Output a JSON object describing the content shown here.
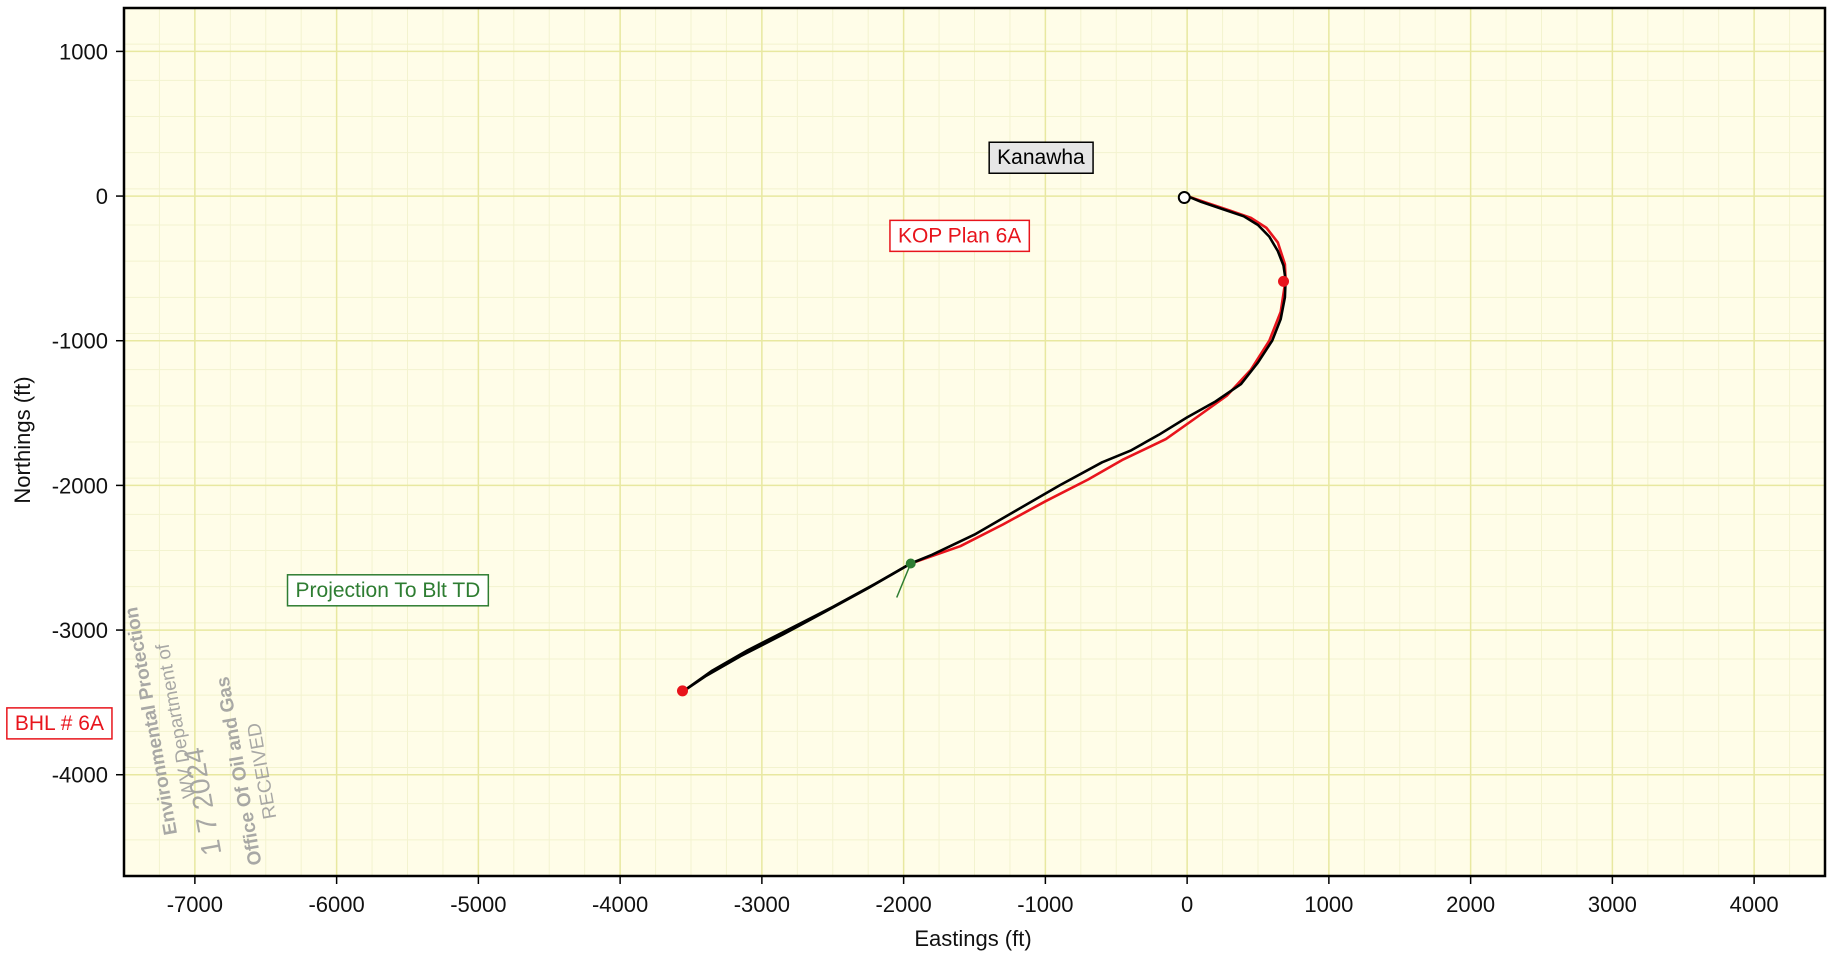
{
  "chart_data": {
    "type": "line",
    "title": "",
    "xlabel": "Eastings (ft)",
    "ylabel": "Northings (ft)",
    "xlim": [
      -7500,
      4500
    ],
    "ylim": [
      -4700,
      1300
    ],
    "xticks": [
      -7000,
      -6000,
      -5000,
      -4000,
      -3000,
      -2000,
      -1000,
      0,
      1000,
      2000,
      3000,
      4000
    ],
    "yticks": [
      1000,
      0,
      -1000,
      -2000,
      -3000,
      -4000
    ],
    "grid": true,
    "minor_grid": true,
    "colors": {
      "plot_background": "#fffde8",
      "major_grid": "#e8e8a0",
      "minor_grid": "#f3f3cf",
      "axis": "#000000",
      "actual": "#000000",
      "plan": "#e8141c",
      "projection": "#2e7d32",
      "annotation_red": "#e8141c",
      "annotation_green": "#2e7d32"
    },
    "series": [
      {
        "x": [
          0,
          100,
          250,
          400,
          500,
          580,
          640,
          680,
          695,
          690,
          660,
          600,
          500,
          380,
          200,
          0,
          -200,
          -400,
          -600,
          -900,
          -1200,
          -1500,
          -1800,
          -1950
        ],
        "y": [
          0,
          -40,
          -90,
          -140,
          -200,
          -280,
          -380,
          -480,
          -580,
          -700,
          -850,
          -1000,
          -1150,
          -1300,
          -1420,
          -1530,
          -1650,
          -1760,
          -1840,
          -2000,
          -2170,
          -2340,
          -2480,
          -2540
        ]
      },
      {
        "x": [
          0,
          150,
          300,
          450,
          560,
          640,
          690,
          695,
          660,
          580,
          450,
          280,
          80,
          -150,
          -450,
          -700,
          -1000,
          -1300,
          -1600,
          -1950
        ],
        "y": [
          0,
          -50,
          -100,
          -150,
          -220,
          -320,
          -470,
          -580,
          -800,
          -1000,
          -1200,
          -1380,
          -1520,
          -1680,
          -1820,
          -1960,
          -2110,
          -2270,
          -2420,
          -2540
        ]
      },
      {
        "x": [
          -1950,
          -2200,
          -2500,
          -2800,
          -3100,
          -3350,
          -3550
        ],
        "y": [
          -2540,
          -2680,
          -2840,
          -2990,
          -3140,
          -3280,
          -3420
        ]
      },
      {
        "x": [
          -1950,
          -2250,
          -2550,
          -2850,
          -3150,
          -3400,
          -3550
        ],
        "y": [
          -2540,
          -2710,
          -2870,
          -3030,
          -3180,
          -3320,
          -3420
        ]
      }
    ],
    "points": [
      {
        "name": "surface",
        "x": -20,
        "y": -10,
        "style": "circle-open"
      },
      {
        "name": "kop",
        "x": 680,
        "y": -590,
        "style": "dot-red"
      },
      {
        "name": "projection",
        "x": -1950,
        "y": -2540,
        "style": "dot-green"
      },
      {
        "name": "bhl",
        "x": -3560,
        "y": -3420,
        "style": "dot-red"
      }
    ],
    "annotations": [
      {
        "text": "Kanawha",
        "x": -1340,
        "y": 220,
        "style": "gray"
      },
      {
        "text": "KOP Plan 6A",
        "x": -2040,
        "y": -320,
        "style": "red"
      },
      {
        "text": "Projection To Blt TD",
        "x": -6290,
        "y": -2770,
        "style": "green"
      },
      {
        "text": "BHL # 6A",
        "x": -8270,
        "y": -3690,
        "style": "red"
      }
    ]
  },
  "stamp": {
    "lines": [
      "WV Department of",
      "Environmental Protection",
      "1 7 2024",
      "RECEIVED",
      "Office Of Oil and Gas"
    ]
  }
}
